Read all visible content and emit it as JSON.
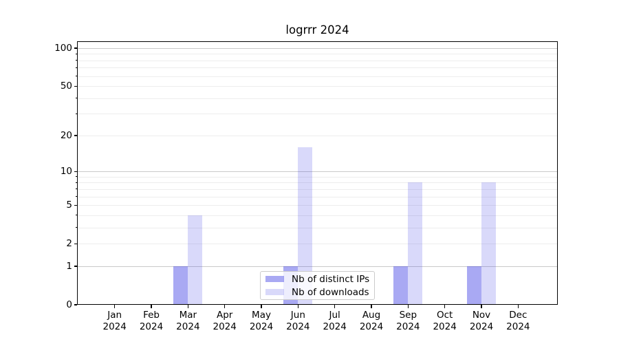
{
  "title": "logrrr 2024",
  "chart_data": {
    "type": "bar",
    "title": "logrrr 2024",
    "categories": [
      "Jan",
      "Feb",
      "Mar",
      "Apr",
      "May",
      "Jun",
      "Jul",
      "Aug",
      "Sep",
      "Oct",
      "Nov",
      "Dec"
    ],
    "year": "2024",
    "series": [
      {
        "name": "Nb of distinct IPs",
        "color": "rgba(40,40,225,0.4)",
        "values": [
          0,
          0,
          1,
          0,
          0,
          1,
          0,
          0,
          1,
          0,
          1,
          0
        ]
      },
      {
        "name": "Nb of downloads",
        "color": "rgba(65,65,230,0.2)",
        "values": [
          0,
          0,
          4,
          0,
          0,
          16,
          0,
          0,
          8,
          0,
          8,
          0
        ]
      }
    ],
    "xlabel": "",
    "ylabel": "",
    "y_axis": {
      "scale": "log1p",
      "tick_labels": [
        0,
        1,
        2,
        5,
        10,
        20,
        50,
        100
      ],
      "major_gridlines": [
        1,
        10,
        100
      ],
      "minor_gridlines": [
        2,
        3,
        4,
        5,
        6,
        7,
        8,
        9,
        20,
        30,
        40,
        50,
        60,
        70,
        80,
        90
      ],
      "ylim": [
        0,
        100
      ]
    },
    "grid": true,
    "legend_position": "lower center",
    "colors": {
      "major_grid": "#c9c9c9",
      "minor_grid": "#ededed",
      "axis": "#000000",
      "background": "#ffffff"
    }
  }
}
